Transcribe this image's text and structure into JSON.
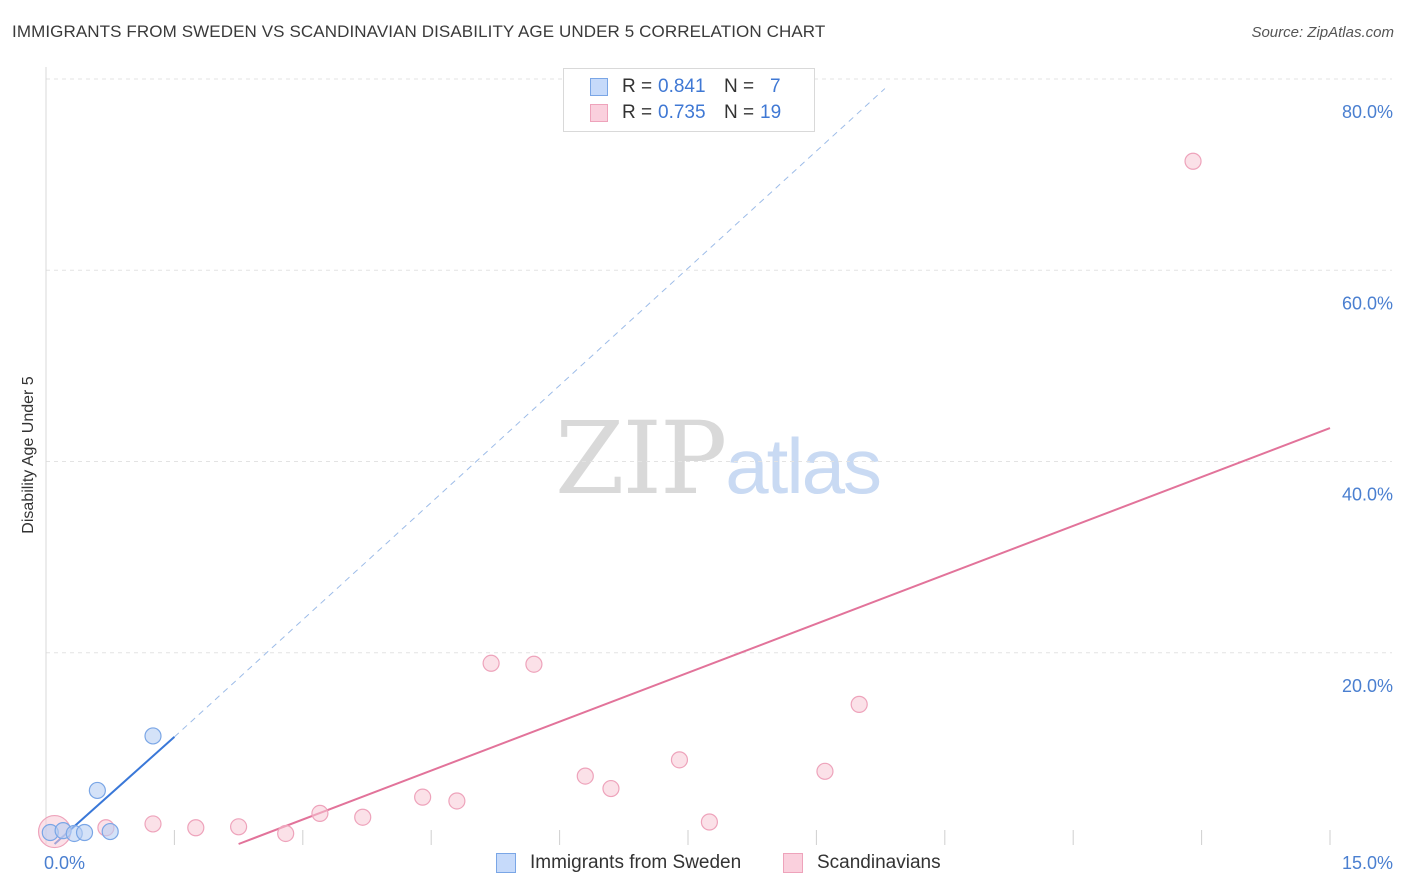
{
  "header": {
    "title": "IMMIGRANTS FROM SWEDEN VS SCANDINAVIAN DISABILITY AGE UNDER 5 CORRELATION CHART",
    "source": "Source: ZipAtlas.com"
  },
  "watermark": {
    "zip": "ZIP",
    "atlas": "atlas"
  },
  "legend": {
    "rows": [
      {
        "r_label": "R =",
        "r_value": "0.841",
        "n_label": "N =",
        "n_value": "7"
      },
      {
        "r_label": "R =",
        "r_value": "0.735",
        "n_label": "N =",
        "n_value": "19"
      }
    ]
  },
  "bottom_legend": {
    "sweden": "Immigrants from Sweden",
    "scandinavians": "Scandinavians"
  },
  "colors": {
    "blue_fill": "#b7cff4",
    "blue_stroke": "#7aa6e6",
    "blue_line": "#3a78d8",
    "pink_fill": "#f8c8d6",
    "pink_stroke": "#eea3bb",
    "pink_line": "#e2739a",
    "grid": "#e3e3e3",
    "tick_text": "#4a7fd0"
  },
  "chart_data": {
    "type": "scatter",
    "title": "IMMIGRANTS FROM SWEDEN VS SCANDINAVIAN DISABILITY AGE UNDER 5 CORRELATION CHART",
    "xlabel": "",
    "ylabel": "Disability Age Under 5",
    "xlim": [
      0,
      15
    ],
    "ylim": [
      0,
      80
    ],
    "x_tick_labels": [
      {
        "value": 0,
        "label": "0.0%"
      },
      {
        "value": 15,
        "label": "15.0%"
      }
    ],
    "y_tick_labels": [
      {
        "value": 20,
        "label": "20.0%"
      },
      {
        "value": 40,
        "label": "40.0%"
      },
      {
        "value": 60,
        "label": "60.0%"
      },
      {
        "value": 80,
        "label": "80.0%"
      }
    ],
    "series": [
      {
        "name": "Immigrants from Sweden",
        "color": "blue",
        "points": [
          {
            "x": 0.05,
            "y": 1.2
          },
          {
            "x": 0.2,
            "y": 1.4
          },
          {
            "x": 0.33,
            "y": 1.1
          },
          {
            "x": 0.45,
            "y": 1.2
          },
          {
            "x": 0.6,
            "y": 5.6
          },
          {
            "x": 0.75,
            "y": 1.3
          },
          {
            "x": 1.25,
            "y": 11.3
          }
        ],
        "trend": {
          "x0": 0.1,
          "y0": 0.0,
          "x1": 1.5,
          "y1": 11.2,
          "dash_x1": 9.8,
          "dash_y1": 79.0
        }
      },
      {
        "name": "Scandinavians",
        "color": "pink",
        "points": [
          {
            "x": 0.1,
            "y": 1.3
          },
          {
            "x": 0.7,
            "y": 1.7
          },
          {
            "x": 1.25,
            "y": 2.1
          },
          {
            "x": 1.75,
            "y": 1.7
          },
          {
            "x": 2.25,
            "y": 1.8
          },
          {
            "x": 2.8,
            "y": 1.1
          },
          {
            "x": 3.2,
            "y": 3.2
          },
          {
            "x": 3.7,
            "y": 2.8
          },
          {
            "x": 4.4,
            "y": 4.9
          },
          {
            "x": 4.8,
            "y": 4.5
          },
          {
            "x": 5.2,
            "y": 18.9
          },
          {
            "x": 5.7,
            "y": 18.8
          },
          {
            "x": 6.3,
            "y": 7.1
          },
          {
            "x": 6.6,
            "y": 5.8
          },
          {
            "x": 7.4,
            "y": 8.8
          },
          {
            "x": 7.75,
            "y": 2.3
          },
          {
            "x": 9.1,
            "y": 7.6
          },
          {
            "x": 9.5,
            "y": 14.6
          },
          {
            "x": 13.4,
            "y": 71.4
          }
        ],
        "trend": {
          "x0": 2.25,
          "y0": 0.0,
          "x1": 15.0,
          "y1": 43.5
        }
      }
    ]
  }
}
